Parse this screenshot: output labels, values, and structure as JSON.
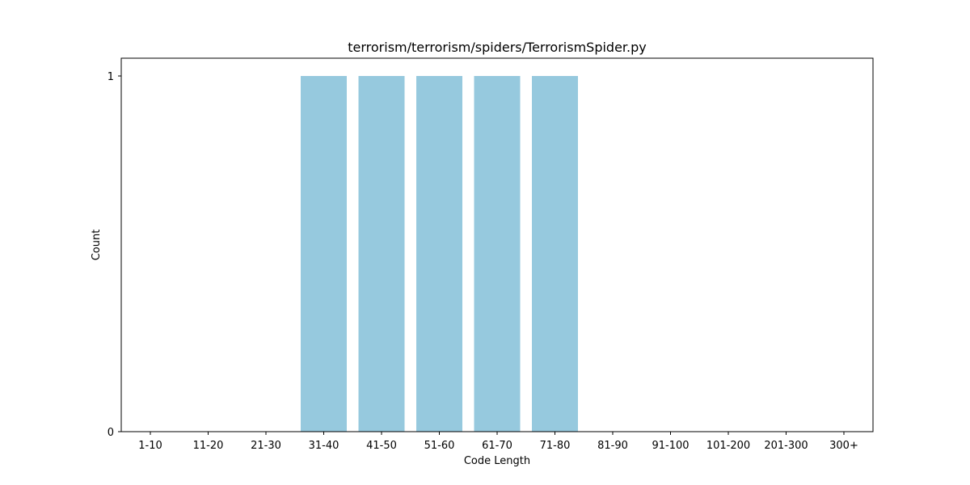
{
  "chart_data": {
    "type": "bar",
    "title": "terrorism/terrorism/spiders/TerrorismSpider.py",
    "xlabel": "Code Length",
    "ylabel": "Count",
    "categories": [
      "1-10",
      "11-20",
      "21-30",
      "31-40",
      "41-50",
      "51-60",
      "61-70",
      "71-80",
      "81-90",
      "91-100",
      "101-200",
      "201-300",
      "300+"
    ],
    "values": [
      0,
      0,
      0,
      1,
      1,
      1,
      1,
      1,
      0,
      0,
      0,
      0,
      0
    ],
    "ylim": [
      0,
      1.05
    ],
    "yticks": [
      0,
      1
    ],
    "grid": false,
    "bar_color": "#96c9de"
  }
}
